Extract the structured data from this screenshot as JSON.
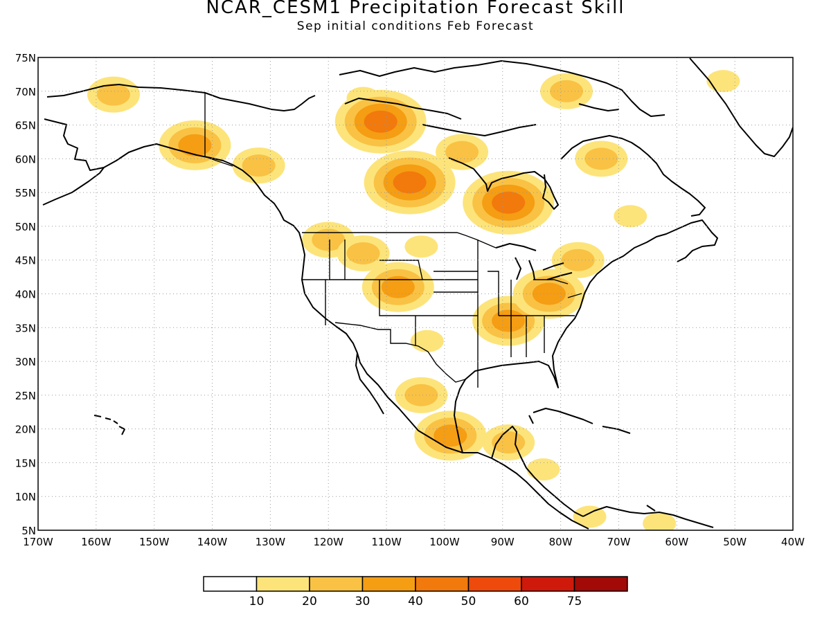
{
  "header": {
    "title": "NCAR_CESM1 Precipitation Forecast Skill",
    "subtitle": "Sep initial conditions  Feb Forecast"
  },
  "axes": {
    "lon_labels": [
      "170W",
      "160W",
      "150W",
      "140W",
      "130W",
      "120W",
      "110W",
      "100W",
      "90W",
      "80W",
      "70W",
      "60W",
      "50W",
      "40W"
    ],
    "lon_values": [
      -170,
      -160,
      -150,
      -140,
      -130,
      -120,
      -110,
      -100,
      -90,
      -80,
      -70,
      -60,
      -50,
      -40
    ],
    "lat_labels": [
      "75N",
      "70N",
      "65N",
      "60N",
      "55N",
      "50N",
      "45N",
      "40N",
      "35N",
      "30N",
      "25N",
      "20N",
      "15N",
      "10N",
      "5N"
    ],
    "lat_values": [
      75,
      70,
      65,
      60,
      55,
      50,
      45,
      40,
      35,
      30,
      25,
      20,
      15,
      10,
      5
    ],
    "lon_range": [
      -170,
      -40
    ],
    "lat_range": [
      5,
      75
    ],
    "grid": "dotted"
  },
  "colorbar": {
    "labels": [
      "10",
      "20",
      "30",
      "40",
      "50",
      "60",
      "75"
    ],
    "colors": [
      "#ffffff",
      "#fde47a",
      "#f9c244",
      "#f59d13",
      "#f2790c",
      "#ee4a0c",
      "#cf1a0b",
      "#a10a06"
    ]
  },
  "skill_regions": [
    {
      "lon": -157,
      "lat": 69.5,
      "level": 2
    },
    {
      "lon": -143,
      "lat": 62,
      "level": 3
    },
    {
      "lon": -132,
      "lat": 59,
      "level": 2
    },
    {
      "lon": -114,
      "lat": 69,
      "level": 1
    },
    {
      "lon": -111,
      "lat": 65.5,
      "level": 4
    },
    {
      "lon": -106,
      "lat": 56.5,
      "level": 4
    },
    {
      "lon": -97,
      "lat": 61,
      "level": 2
    },
    {
      "lon": -89,
      "lat": 53.5,
      "level": 4
    },
    {
      "lon": -79,
      "lat": 70,
      "level": 2
    },
    {
      "lon": -73,
      "lat": 60,
      "level": 2
    },
    {
      "lon": -68,
      "lat": 51.5,
      "level": 1
    },
    {
      "lon": -52,
      "lat": 71.5,
      "level": 1
    },
    {
      "lon": -120,
      "lat": 48,
      "level": 2
    },
    {
      "lon": -114,
      "lat": 46,
      "level": 2
    },
    {
      "lon": -104,
      "lat": 47,
      "level": 1
    },
    {
      "lon": -108,
      "lat": 41,
      "level": 3
    },
    {
      "lon": -103,
      "lat": 33,
      "level": 1
    },
    {
      "lon": -89,
      "lat": 36,
      "level": 3
    },
    {
      "lon": -82,
      "lat": 40,
      "level": 3
    },
    {
      "lon": -77,
      "lat": 45,
      "level": 2
    },
    {
      "lon": -104,
      "lat": 25,
      "level": 2
    },
    {
      "lon": -99,
      "lat": 19,
      "level": 3
    },
    {
      "lon": -89,
      "lat": 18,
      "level": 2
    },
    {
      "lon": -83,
      "lat": 14,
      "level": 1
    },
    {
      "lon": -75,
      "lat": 7,
      "level": 1
    },
    {
      "lon": -63,
      "lat": 6,
      "level": 1
    }
  ]
}
